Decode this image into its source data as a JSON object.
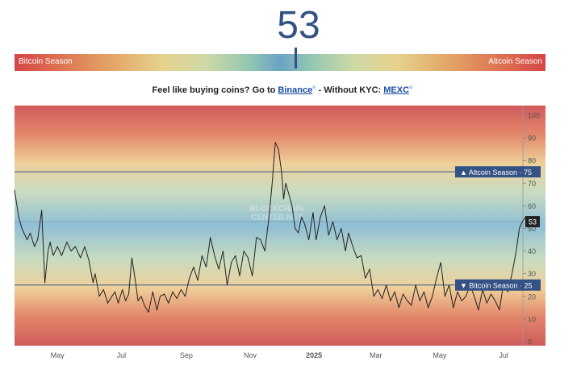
{
  "header": {
    "index_value": "53",
    "bar_left_label": "Bitcoin Season",
    "bar_right_label": "Altcoin Season",
    "marker_value": 53
  },
  "promo": {
    "prefix": "Feel like buying coins? Go to ",
    "binance": "Binance",
    "reg1": "®",
    "middle": " - Without KYC: ",
    "mexc": "MEXC",
    "reg2": "®"
  },
  "watermark": [
    "BLOCKCHAIN",
    "CENTER.NET"
  ],
  "colors": {
    "accent": "#345284",
    "bitcoin_season": "#d64545",
    "neutral": "#6ba3c6",
    "line": "#222222",
    "label_box": "#345284"
  },
  "chart_data": {
    "type": "line",
    "ylim": [
      0,
      100
    ],
    "yticks": [
      0,
      10,
      20,
      30,
      40,
      50,
      60,
      70,
      80,
      90,
      100
    ],
    "x_tick_labels": [
      "May",
      "Jul",
      "Sep",
      "Nov",
      "2025",
      "Mar",
      "May",
      "Jul"
    ],
    "x_tick_dates": [
      "2024-05-01",
      "2024-07-01",
      "2024-09-01",
      "2024-11-01",
      "2025-01-01",
      "2025-03-01",
      "2025-05-01",
      "2025-07-01"
    ],
    "x_range": [
      "2024-03-21",
      "2025-08-10"
    ],
    "thresholds": [
      {
        "label": "Altcoin Season",
        "value": 75,
        "marker": "▲"
      },
      {
        "label": "Bitcoin Season",
        "value": 25,
        "marker": "▼"
      }
    ],
    "current": {
      "label": "53",
      "value": 53
    },
    "series": [
      {
        "x": [
          "2024-03-21",
          "2024-03-25",
          "2024-03-28",
          "2024-04-02",
          "2024-04-05",
          "2024-04-09",
          "2024-04-12",
          "2024-04-16",
          "2024-04-19",
          "2024-04-22",
          "2024-04-24",
          "2024-04-27",
          "2024-05-01",
          "2024-05-05",
          "2024-05-10",
          "2024-05-14",
          "2024-05-18",
          "2024-05-23",
          "2024-05-27",
          "2024-05-31",
          "2024-06-04",
          "2024-06-06",
          "2024-06-10",
          "2024-06-14",
          "2024-06-18",
          "2024-06-22",
          "2024-06-25",
          "2024-06-28",
          "2024-07-02",
          "2024-07-05",
          "2024-07-08",
          "2024-07-11",
          "2024-07-14",
          "2024-07-17",
          "2024-07-20",
          "2024-07-23",
          "2024-07-27",
          "2024-07-31",
          "2024-08-04",
          "2024-08-07",
          "2024-08-11",
          "2024-08-15",
          "2024-08-19",
          "2024-08-23",
          "2024-08-27",
          "2024-08-31",
          "2024-09-04",
          "2024-09-08",
          "2024-09-12",
          "2024-09-16",
          "2024-09-20",
          "2024-09-24",
          "2024-09-28",
          "2024-10-02",
          "2024-10-06",
          "2024-10-10",
          "2024-10-14",
          "2024-10-18",
          "2024-10-22",
          "2024-10-26",
          "2024-10-30",
          "2024-11-03",
          "2024-11-07",
          "2024-11-11",
          "2024-11-15",
          "2024-11-19",
          "2024-11-22",
          "2024-11-25",
          "2024-11-28",
          "2024-12-01",
          "2024-12-03",
          "2024-12-05",
          "2024-12-08",
          "2024-12-11",
          "2024-12-14",
          "2024-12-17",
          "2024-12-20",
          "2024-12-23",
          "2024-12-27",
          "2024-12-31",
          "2025-01-03",
          "2025-01-07",
          "2025-01-11",
          "2025-01-15",
          "2025-01-19",
          "2025-01-23",
          "2025-01-27",
          "2025-01-31",
          "2025-02-03",
          "2025-02-07",
          "2025-02-11",
          "2025-02-15",
          "2025-02-19",
          "2025-02-23",
          "2025-02-27",
          "2025-03-03",
          "2025-03-07",
          "2025-03-11",
          "2025-03-15",
          "2025-03-19",
          "2025-03-23",
          "2025-03-27",
          "2025-03-31",
          "2025-04-04",
          "2025-04-08",
          "2025-04-12",
          "2025-04-16",
          "2025-04-20",
          "2025-04-24",
          "2025-04-28",
          "2025-05-02",
          "2025-05-06",
          "2025-05-10",
          "2025-05-14",
          "2025-05-18",
          "2025-05-22",
          "2025-05-26",
          "2025-05-30",
          "2025-06-03",
          "2025-06-07",
          "2025-06-11",
          "2025-06-15",
          "2025-06-19",
          "2025-06-23",
          "2025-06-27",
          "2025-07-01",
          "2025-07-05",
          "2025-07-09",
          "2025-07-13",
          "2025-07-16",
          "2025-07-19",
          "2025-07-22"
        ],
        "y": [
          67,
          55,
          50,
          45,
          48,
          42,
          45,
          58,
          26,
          40,
          44,
          38,
          42,
          38,
          44,
          40,
          42,
          37,
          42,
          36,
          26,
          30,
          20,
          23,
          17,
          20,
          22,
          17,
          23,
          18,
          21,
          37,
          28,
          18,
          20,
          16,
          13,
          22,
          14,
          20,
          21,
          17,
          22,
          19,
          23,
          20,
          28,
          33,
          27,
          38,
          33,
          46,
          38,
          32,
          40,
          25,
          35,
          38,
          29,
          40,
          37,
          29,
          46,
          45,
          40,
          55,
          70,
          88,
          85,
          75,
          63,
          70,
          65,
          60,
          50,
          48,
          55,
          52,
          45,
          57,
          45,
          55,
          60,
          47,
          53,
          45,
          50,
          40,
          48,
          42,
          37,
          38,
          28,
          32,
          20,
          23,
          19,
          25,
          18,
          22,
          15,
          21,
          18,
          16,
          25,
          18,
          22,
          15,
          20,
          28,
          35,
          20,
          25,
          15,
          22,
          18,
          20,
          25,
          20,
          14,
          23,
          17,
          21,
          18,
          14,
          26,
          22,
          30,
          40,
          50,
          53,
          55
        ]
      }
    ]
  }
}
